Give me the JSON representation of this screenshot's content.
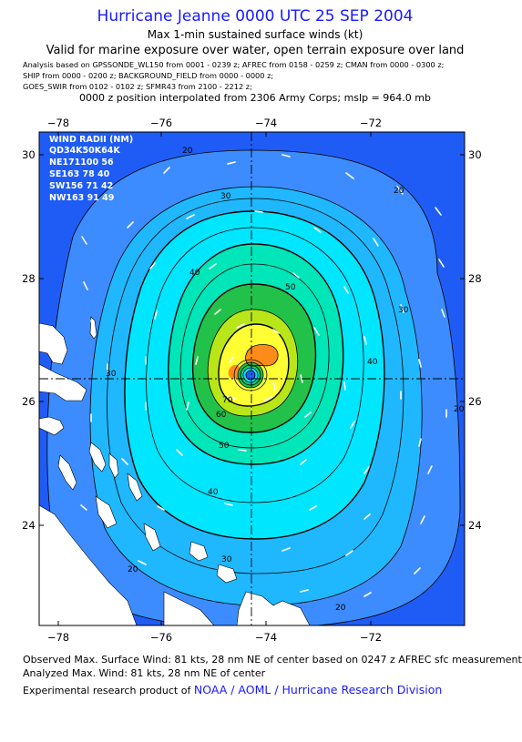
{
  "header": {
    "title": "Hurricane Jeanne 0000 UTC 25 SEP 2004",
    "subtitle": "Max 1-min sustained surface winds (kt)",
    "valid_for": "Valid for marine exposure over water, open terrain exposure over land",
    "analysis_lines": [
      "Analysis based on  GPSSONDE_WL150 from 0001 - 0239 z;  AFREC from 0158 - 0259 z;  CMAN from 0000 - 0300 z;",
      "SHIP from 0000 - 0200 z;  BACKGROUND_FIELD from 0000 - 0000 z;",
      "GOES_SWIR from 0102 - 0102 z;  SFMR43 from 2100 - 2212 z;"
    ],
    "position_note": "0000 z position interpolated from 2306 Army Corps; mslp = 964.0 mb"
  },
  "map": {
    "lon_ticks": [
      "−78",
      "−76",
      "−74",
      "−72"
    ],
    "lat_ticks": [
      "30",
      "28",
      "26",
      "24"
    ],
    "center_lon": -74.2,
    "center_lat": 26.35,
    "contour_labels": [
      "20",
      "30",
      "40",
      "50",
      "60",
      "70"
    ],
    "colors": {
      "land": "#ffffff",
      "outer": "#1f5cf5",
      "band20": "#3d8cff",
      "band30": "#1fb8ff",
      "band40": "#00e6ff",
      "band50": "#00e6b8",
      "band60": "#22c24a",
      "band65": "#b8e619",
      "band70": "#ffff33",
      "band75": "#ff8c1a"
    },
    "wind_radii": {
      "header": "WIND RADII (NM)",
      "columns": "QD34K50K64K",
      "rows": [
        "NE171100 56",
        "SE163 78 40",
        "SW156 71 42",
        "NW163 91 49"
      ]
    }
  },
  "footer": {
    "observed": "Observed Max. Surface Wind: 81 kts, 28 nm NE of center based on 0247 z AFREC sfc measurement",
    "analyzed": "Analyzed Max. Wind: 81 kts, 28 nm NE of center",
    "credit_prefix": "Experimental research product of ",
    "credit_link": "NOAA / AOML / Hurricane Research Division"
  }
}
